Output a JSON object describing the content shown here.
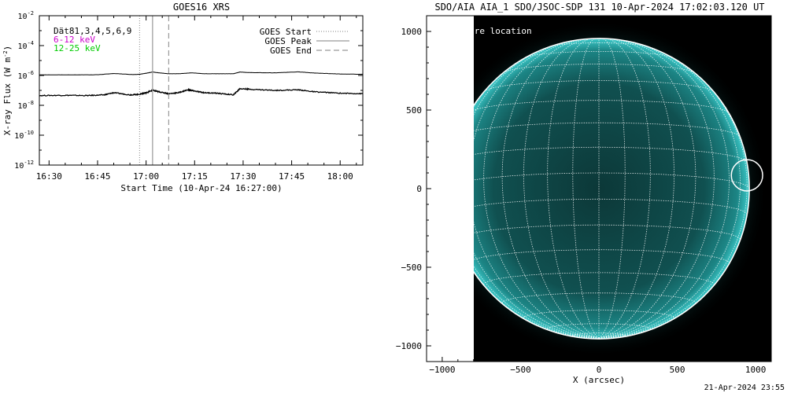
{
  "footer": {
    "timestamp": "21-Apr-2024 23:55"
  },
  "chart_data": [
    {
      "type": "line",
      "title": "GOES16 XRS",
      "xlabel": "Start Time (10-Apr-24 16:27:00)",
      "ylabel": "X-ray Flux (W m",
      "ylabel_sup": "-2",
      "ylabel_close": ")",
      "y_scale": "log",
      "xlim": [
        "16:27",
        "18:07"
      ],
      "ylim": [
        1e-12,
        0.01
      ],
      "x_ticks": [
        "16:30",
        "16:45",
        "17:00",
        "17:15",
        "17:30",
        "17:45",
        "18:00"
      ],
      "y_ticks": [
        {
          "value": 0.01,
          "base": "10",
          "exp": "-2"
        },
        {
          "value": 0.0001,
          "base": "10",
          "exp": "-4"
        },
        {
          "value": 1e-06,
          "base": "10",
          "exp": "-6"
        },
        {
          "value": 1e-08,
          "base": "10",
          "exp": "-8"
        },
        {
          "value": 1e-10,
          "base": "10",
          "exp": "-10"
        },
        {
          "value": 1e-12,
          "base": "10",
          "exp": "-12"
        }
      ],
      "info_lines": [
        {
          "text": "Dät81,3,4,5,6,9",
          "color": "#000000"
        },
        {
          "text": "6-12 keV",
          "color": "#cc00cc"
        },
        {
          "text": "12-25 keV",
          "color": "#00cc00"
        }
      ],
      "legend": [
        {
          "label": "GOES Start",
          "style": "dotted"
        },
        {
          "label": "GOES Peak",
          "style": "solid"
        },
        {
          "label": "GOES End",
          "style": "dashed"
        }
      ],
      "event_lines": {
        "start": "16:58",
        "peak": "17:02",
        "end": "17:07"
      },
      "series": [
        {
          "channel": "long",
          "color": "#000000",
          "x": [
            "16:27",
            "16:35",
            "16:45",
            "16:50",
            "16:56",
            "16:58",
            "17:00",
            "17:02",
            "17:04",
            "17:07",
            "17:10",
            "17:14",
            "17:18",
            "17:22",
            "17:27",
            "17:29",
            "17:32",
            "17:40",
            "17:47",
            "17:52",
            "18:00",
            "18:07"
          ],
          "y": [
            1.1e-06,
            1.1e-06,
            1.12e-06,
            1.35e-06,
            1.15e-06,
            1.2e-06,
            1.4e-06,
            1.7e-06,
            1.5e-06,
            1.3e-06,
            1.3e-06,
            1.5e-06,
            1.3e-06,
            1.3e-06,
            1.3e-06,
            1.7e-06,
            1.55e-06,
            1.5e-06,
            1.75e-06,
            1.45e-06,
            1.25e-06,
            1.2e-06
          ]
        },
        {
          "channel": "short",
          "color": "#000000",
          "x": [
            "16:27",
            "16:35",
            "16:42",
            "16:47",
            "16:50",
            "16:55",
            "16:58",
            "17:00",
            "17:02",
            "17:04",
            "17:07",
            "17:10",
            "17:13",
            "17:15",
            "17:18",
            "17:22",
            "17:27",
            "17:29",
            "17:32",
            "17:40",
            "17:47",
            "17:52",
            "18:00",
            "18:07"
          ],
          "y": [
            4.5e-08,
            4.7e-08,
            4.5e-08,
            5e-08,
            7e-08,
            5e-08,
            5.5e-08,
            7e-08,
            1e-07,
            8e-08,
            6e-08,
            7e-08,
            1.1e-07,
            9e-08,
            7e-08,
            6.5e-08,
            5e-08,
            1.3e-07,
            1.2e-07,
            1e-07,
            1.1e-07,
            8e-08,
            6.5e-08,
            6e-08
          ]
        }
      ]
    },
    {
      "type": "image",
      "title": "SDO/AIA AIA_1 SDO/JSOC-SDP 131 10-Apr-2024 17:02:03.120 UT",
      "xlabel": "X (arcsec)",
      "xlim": [
        -1100,
        1100
      ],
      "ylim": [
        -1100,
        1100
      ],
      "x_ticks": [
        -1000,
        -500,
        0,
        500,
        1000
      ],
      "y_ticks": [
        -1000,
        -500,
        0,
        500,
        1000
      ],
      "image_left_edge_arcsec": -800,
      "solar_radius_arcsec": 960,
      "grid_spacing_deg": 10,
      "flare_location": {
        "x": 945,
        "y": 85,
        "radius": 100
      },
      "annotation": "re location",
      "colors": {
        "disk": "#0e4a4a",
        "disk_bright": "#2fb5b5",
        "grid": "#ffffff"
      }
    }
  ]
}
